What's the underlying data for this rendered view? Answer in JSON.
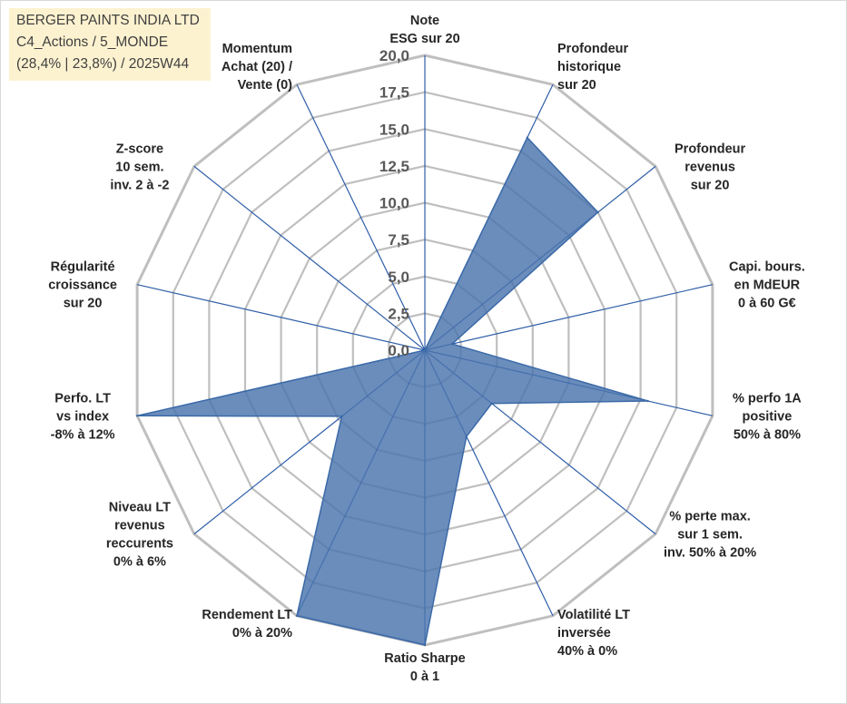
{
  "info": {
    "line1": "BERGER PAINTS INDIA LTD",
    "line2": "C4_Actions / 5_MONDE",
    "line3": "(28,4% | 23,8%) / 2025W44"
  },
  "chart_data": {
    "type": "radar",
    "rmin": 0,
    "rmax": 20,
    "ticks": [
      "0,0",
      "2,5",
      "5,0",
      "7,5",
      "10,0",
      "12,5",
      "15,0",
      "17,5",
      "20,0"
    ],
    "tick_values": [
      0,
      2.5,
      5,
      7.5,
      10,
      12.5,
      15,
      17.5,
      20
    ],
    "colors": {
      "grid": "#bfbfbf",
      "spoke": "#2f5ea8",
      "fill": "#4a74ad",
      "stroke": "#3b6aa8"
    },
    "axes": [
      {
        "label": [
          "Note",
          "ESG sur 20"
        ],
        "value": 0
      },
      {
        "label": [
          "Profondeur",
          "historique",
          "sur 20"
        ],
        "value": 16
      },
      {
        "label": [
          "Profondeur",
          "revenus",
          "sur 20"
        ],
        "value": 15
      },
      {
        "label": [
          "Capi. bours.",
          "en MdEUR",
          "0 à 60 G€"
        ],
        "value": 1.9
      },
      {
        "label": [
          "% perfo 1A",
          "positive",
          "50% à 80%"
        ],
        "value": 15.5
      },
      {
        "label": [
          "% perte max.",
          "sur 1 sem.",
          "inv. 50% à 20%"
        ],
        "value": 5.8
      },
      {
        "label": [
          "Volatilité LT",
          "inversée",
          "40% à 0%"
        ],
        "value": 6.5
      },
      {
        "label": [
          "Ratio Sharpe",
          "0 à 1"
        ],
        "value": 20
      },
      {
        "label": [
          "Rendement LT",
          "0% à 20%"
        ],
        "value": 20
      },
      {
        "label": [
          "Niveau LT",
          "revenus",
          "reccurents",
          "0% à 6%"
        ],
        "value": 7.2
      },
      {
        "label": [
          "Perfo. LT",
          "vs index",
          "-8% à 12%"
        ],
        "value": 20
      },
      {
        "label": [
          "Régularité",
          "croissance",
          "sur 20"
        ],
        "value": 0
      },
      {
        "label": [
          "Z-score",
          "10 sem.",
          "inv. 2 à -2"
        ],
        "value": 0
      },
      {
        "label": [
          "Momentum",
          "Achat (20) /",
          "Vente (0)"
        ],
        "value": 0
      }
    ]
  }
}
